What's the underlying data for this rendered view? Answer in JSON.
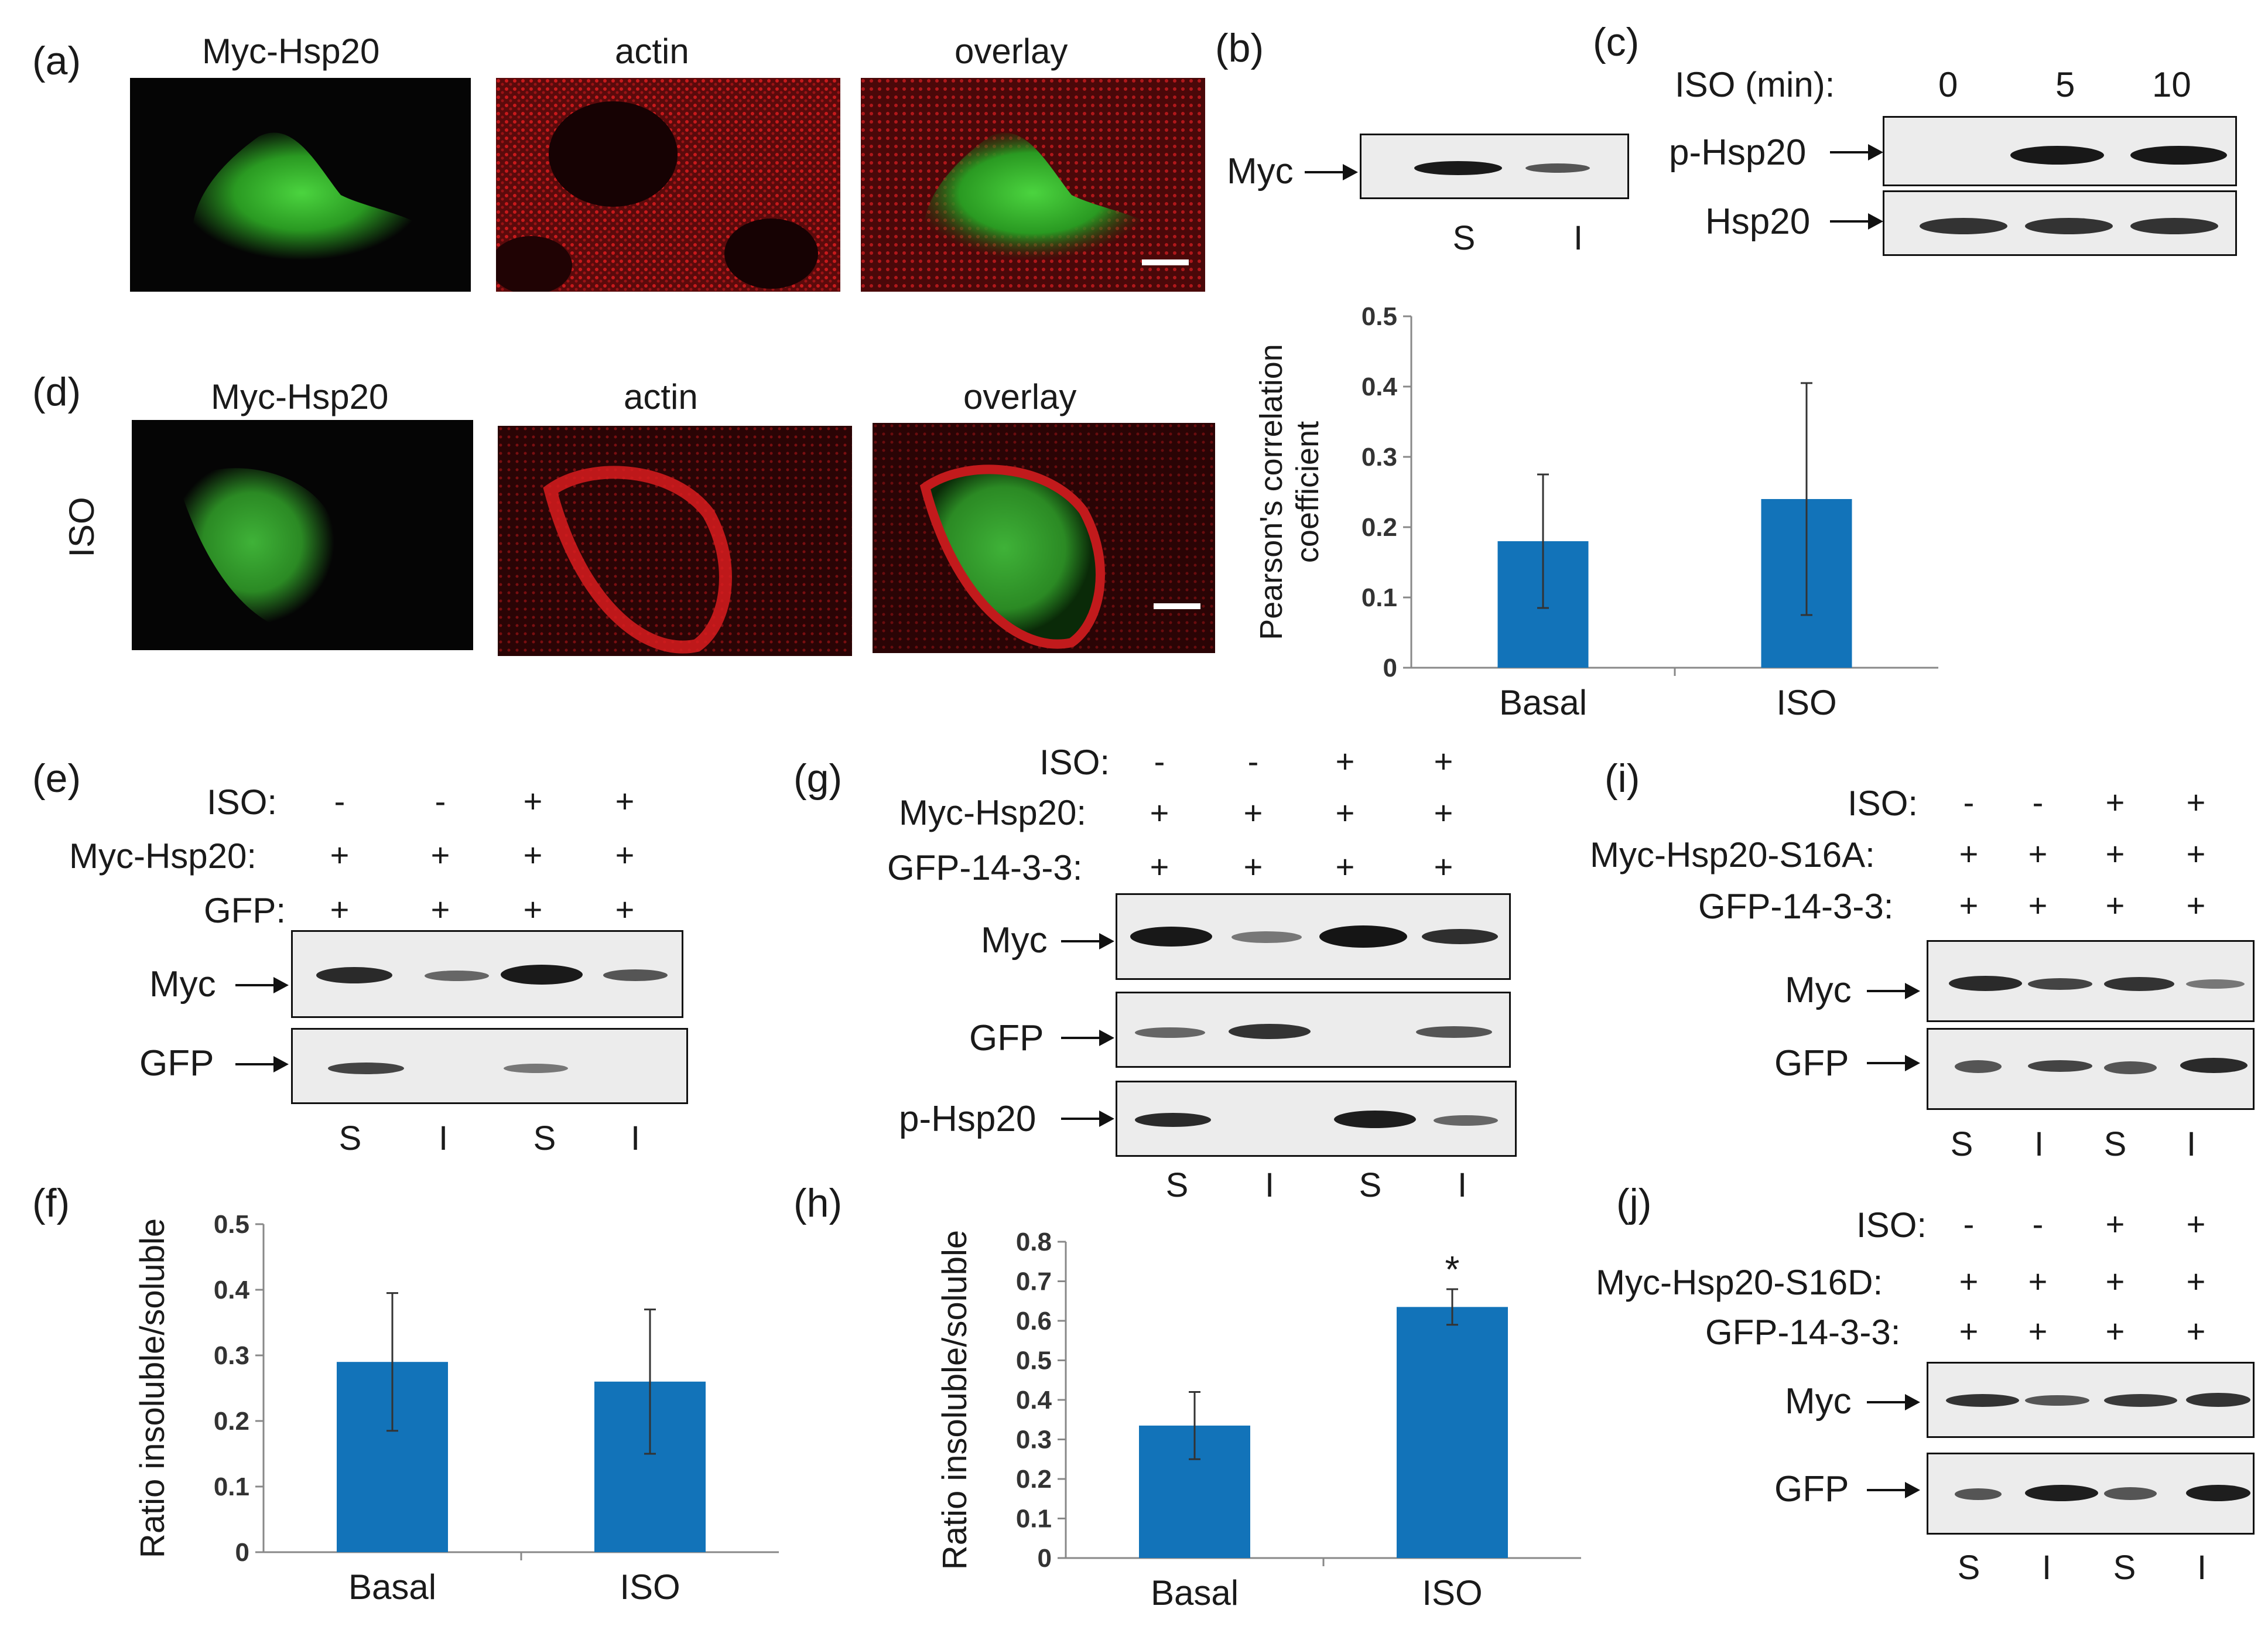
{
  "panels": {
    "a": {
      "letter": "(a)",
      "titles": [
        "Myc-Hsp20",
        "actin",
        "overlay"
      ]
    },
    "b": {
      "letter": "(b)",
      "row": "Myc",
      "lanes": [
        "S",
        "I"
      ]
    },
    "c": {
      "letter": "(c)",
      "header": "ISO (min):",
      "times": [
        "0",
        "5",
        "10"
      ],
      "rows": [
        "p-Hsp20",
        "Hsp20"
      ]
    },
    "d": {
      "letter": "(d)",
      "side": "ISO",
      "titles": [
        "Myc-Hsp20",
        "actin",
        "overlay"
      ]
    },
    "e": {
      "letter": "(e)",
      "conds": [
        "ISO:",
        "Myc-Hsp20:",
        "GFP:"
      ],
      "signs": [
        [
          "-",
          "-",
          "+",
          "+"
        ],
        [
          "+",
          "+",
          "+",
          "+"
        ],
        [
          "+",
          "+",
          "+",
          "+"
        ]
      ],
      "rows": [
        "Myc",
        "GFP"
      ],
      "lanes": [
        "S",
        "I",
        "S",
        "I"
      ]
    },
    "f": {
      "letter": "(f)"
    },
    "g": {
      "letter": "(g)",
      "conds": [
        "ISO:",
        "Myc-Hsp20:",
        "GFP-14-3-3:"
      ],
      "signs": [
        [
          "-",
          "-",
          "+",
          "+"
        ],
        [
          "+",
          "+",
          "+",
          "+"
        ],
        [
          "+",
          "+",
          "+",
          "+"
        ]
      ],
      "rows": [
        "Myc",
        "GFP",
        "p-Hsp20"
      ],
      "lanes": [
        "S",
        "I",
        "S",
        "I"
      ]
    },
    "h": {
      "letter": "(h)"
    },
    "i": {
      "letter": "(i)",
      "conds": [
        "ISO:",
        "Myc-Hsp20-S16A:",
        "GFP-14-3-3:"
      ],
      "signs": [
        [
          "-",
          "-",
          "+",
          "+"
        ],
        [
          "+",
          "+",
          "+",
          "+"
        ],
        [
          "+",
          "+",
          "+",
          "+"
        ]
      ],
      "rows": [
        "Myc",
        "GFP"
      ],
      "lanes": [
        "S",
        "I",
        "S",
        "I"
      ]
    },
    "j": {
      "letter": "(j)",
      "conds": [
        "ISO:",
        "Myc-Hsp20-S16D:",
        "GFP-14-3-3:"
      ],
      "signs": [
        [
          "-",
          "-",
          "+",
          "+"
        ],
        [
          "+",
          "+",
          "+",
          "+"
        ],
        [
          "+",
          "+",
          "+",
          "+"
        ]
      ],
      "rows": [
        "Myc",
        "GFP"
      ],
      "lanes": [
        "S",
        "I",
        "S",
        "I"
      ]
    }
  },
  "colors": {
    "bar": "#1273b9",
    "green": "#3fbf3a",
    "red": "#d4191c"
  },
  "chart_data": [
    {
      "id": "d-chart",
      "type": "bar",
      "categories": [
        "Basal",
        "ISO"
      ],
      "values": [
        0.18,
        0.24
      ],
      "errors": [
        0.095,
        0.165
      ],
      "ylabel": "Pearson's correlation coefficient",
      "ylabel_lines": [
        "Pearson's correlation",
        "coefficient"
      ],
      "ylim": [
        0,
        0.5
      ],
      "yticks": [
        "0",
        "0.1",
        "0.2",
        "0.3",
        "0.4",
        "0.5"
      ],
      "star": ""
    },
    {
      "id": "f-chart",
      "type": "bar",
      "categories": [
        "Basal",
        "ISO"
      ],
      "values": [
        0.29,
        0.26
      ],
      "errors": [
        0.105,
        0.11
      ],
      "ylabel": "Ratio insoluble/soluble",
      "ylabel_lines": [
        "Ratio insoluble/soluble"
      ],
      "ylim": [
        0,
        0.5
      ],
      "yticks": [
        "0",
        "0.1",
        "0.2",
        "0.3",
        "0.4",
        "0.5"
      ],
      "star": ""
    },
    {
      "id": "h-chart",
      "type": "bar",
      "categories": [
        "Basal",
        "ISO"
      ],
      "values": [
        0.335,
        0.635
      ],
      "errors": [
        0.085,
        0.045
      ],
      "ylabel": "Ratio insoluble/soluble",
      "ylabel_lines": [
        "Ratio insoluble/soluble"
      ],
      "ylim": [
        0,
        0.8
      ],
      "yticks": [
        "0",
        "0.1",
        "0.2",
        "0.3",
        "0.4",
        "0.5",
        "0.6",
        "0.7",
        "0.8"
      ],
      "star": "*"
    }
  ]
}
